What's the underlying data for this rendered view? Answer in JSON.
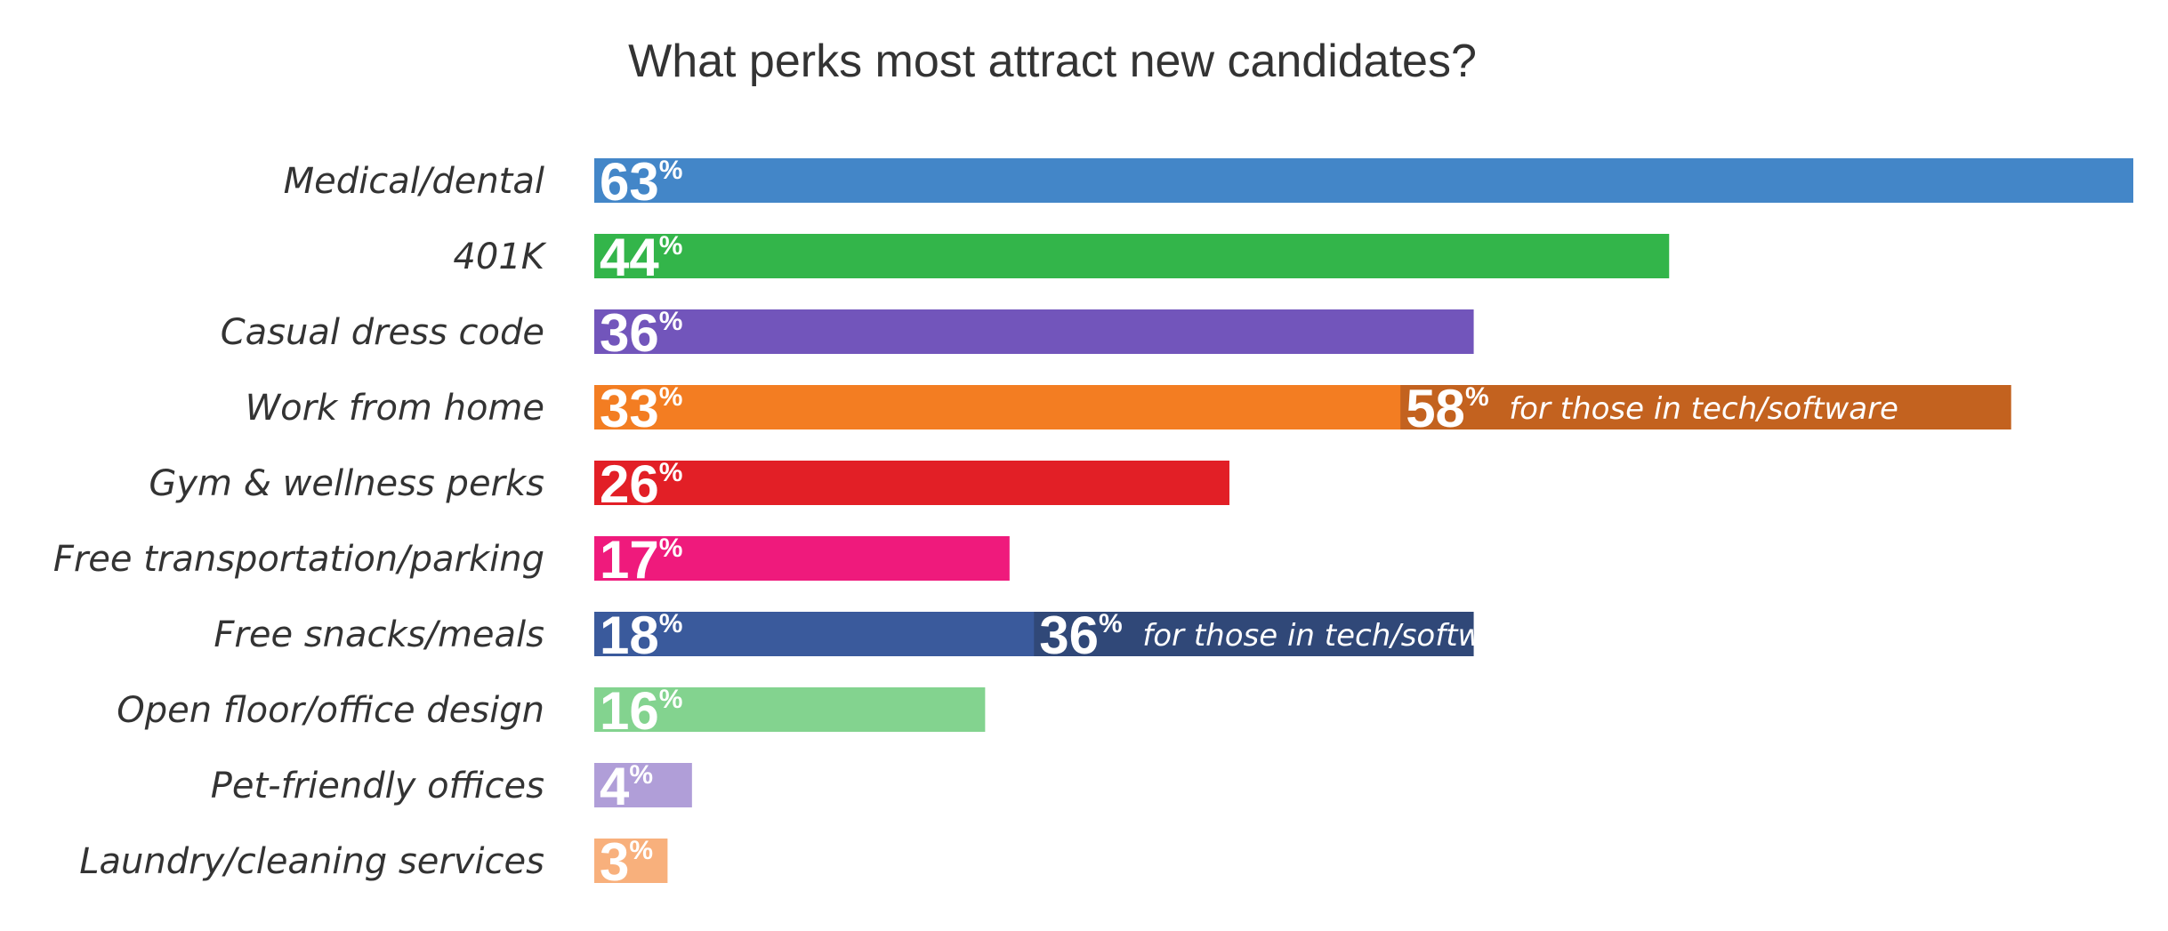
{
  "chart_data": {
    "type": "bar",
    "orientation": "horizontal",
    "title": "What perks most attract new candidates?",
    "categories": [
      "Medical/dental",
      "401K",
      "Casual dress code",
      "Work from home",
      "Gym & wellness perks",
      "Free transportation/parking",
      "Free snacks/meals",
      "Open floor/office design",
      "Pet-friendly offices",
      "Laundry/cleaning services"
    ],
    "values": [
      63,
      44,
      36,
      33,
      26,
      17,
      18,
      16,
      4,
      3
    ],
    "colors": [
      "#4386c8",
      "#33b54a",
      "#7255bb",
      "#f37d22",
      "#e21f26",
      "#ef1a7c",
      "#3a5a9c",
      "#83d38f",
      "#b09ed8",
      "#f8b07c"
    ],
    "value_suffix": "%",
    "sub_values": [
      {
        "category": "Work from home",
        "value": 58,
        "label": "for those in tech/software",
        "color": "#c3621f"
      },
      {
        "category": "Free snacks/meals",
        "value": 36,
        "label": "for those in tech/software",
        "color": "#304878"
      }
    ],
    "xlim": [
      0,
      63
    ],
    "grid": false,
    "legend": "none"
  }
}
